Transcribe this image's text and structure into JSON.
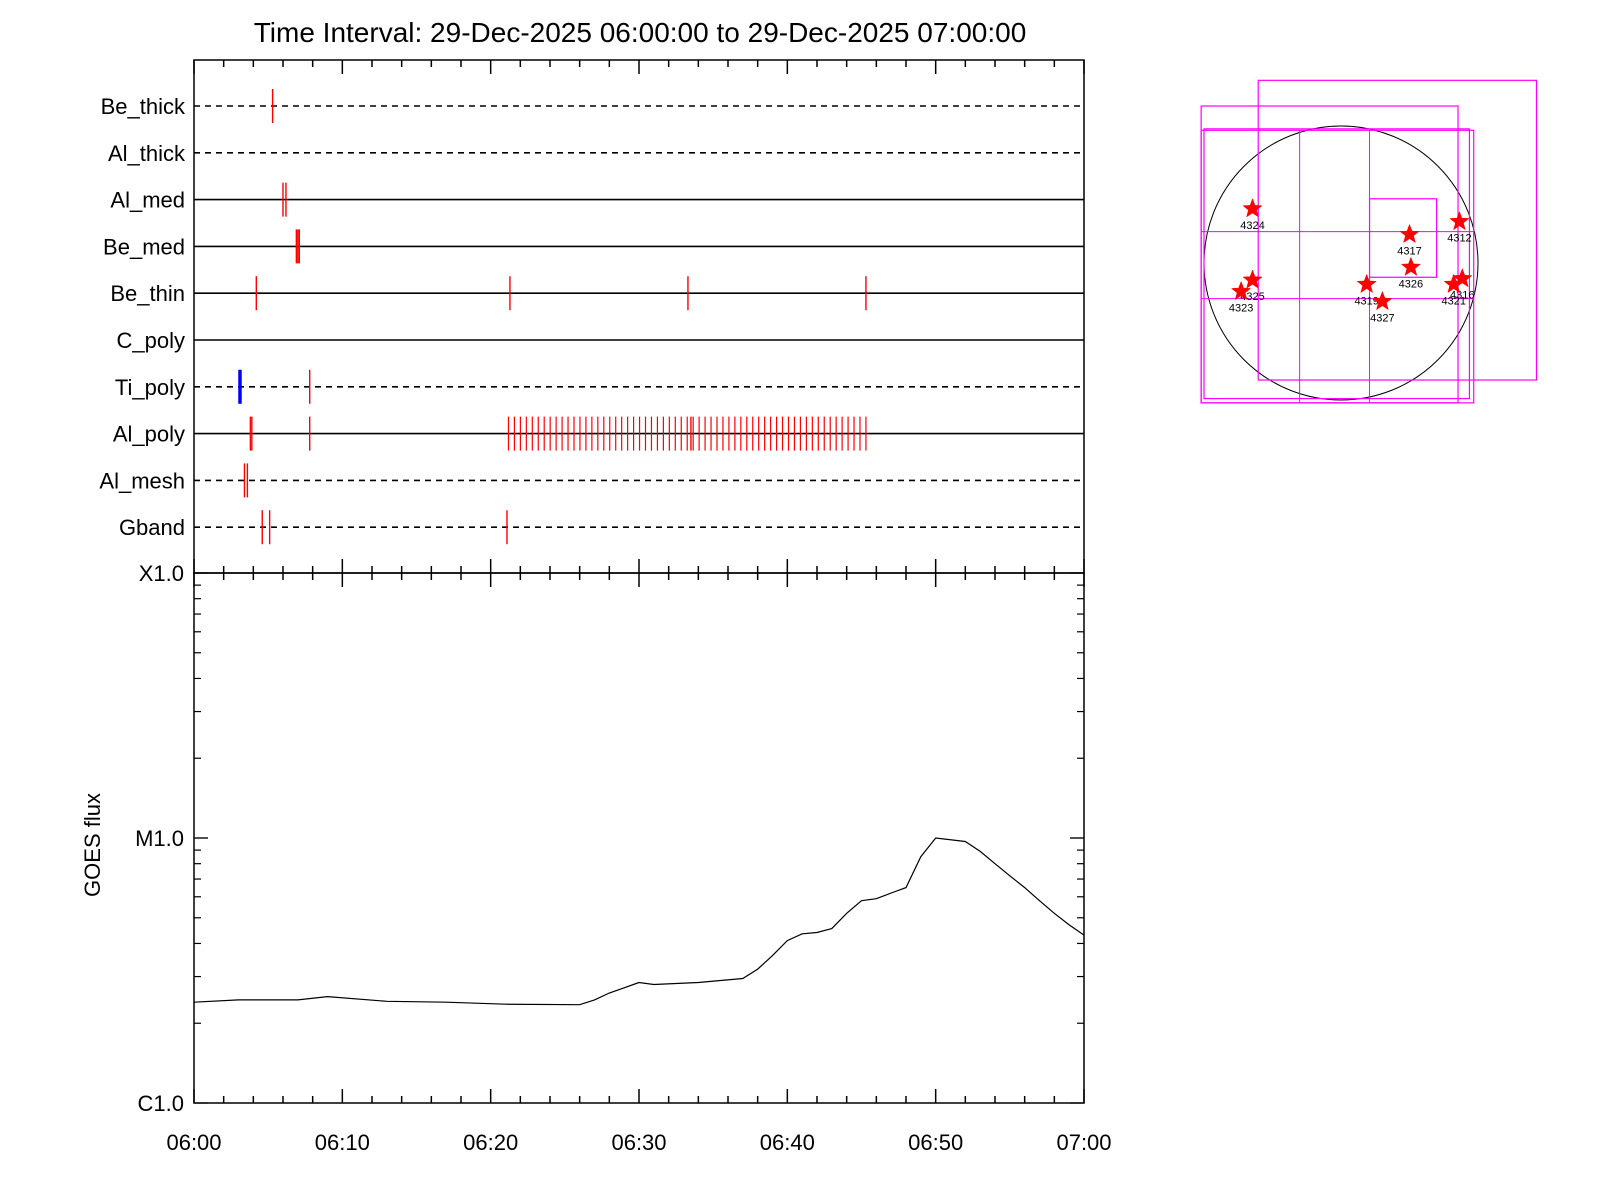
{
  "title": "Time Interval: 29-Dec-2025 06:00:00 to 29-Dec-2025 07:00:00",
  "colors": {
    "exposure": "#ff0000",
    "highlight": "#0000ff",
    "fov": "#ff00ff",
    "curve": "#000000"
  },
  "chart_data": [
    {
      "type": "timeline",
      "time_range": [
        "06:00",
        "07:00"
      ],
      "filters": [
        {
          "name": "Be_thick",
          "line": "dashed",
          "marks": [
            5.3
          ]
        },
        {
          "name": "Al_thick",
          "line": "dashed",
          "marks": []
        },
        {
          "name": "Al_med",
          "line": "solid",
          "marks": [
            6.0,
            6.2
          ]
        },
        {
          "name": "Be_med",
          "line": "solid",
          "marks": [
            6.9,
            7.0,
            7.1
          ]
        },
        {
          "name": "Be_thin",
          "line": "solid",
          "marks": [
            4.2,
            21.3,
            33.3,
            45.3
          ]
        },
        {
          "name": "C_poly",
          "line": "solid",
          "marks": []
        },
        {
          "name": "Ti_poly",
          "line": "dashed",
          "marks": [
            7.8
          ],
          "highlight": [
            3.1
          ]
        },
        {
          "name": "Al_poly",
          "line": "solid",
          "marks": [
            3.8,
            3.9,
            7.8,
            33.5
          ],
          "dense_range": [
            21.2,
            45.3
          ],
          "dense_step": 0.4
        },
        {
          "name": "Al_mesh",
          "line": "dashed",
          "marks": [
            3.4,
            3.6
          ]
        },
        {
          "name": "Gband",
          "line": "dashed",
          "marks": [
            4.6,
            5.1,
            21.1
          ]
        }
      ]
    },
    {
      "type": "line",
      "ylabel": "GOES flux",
      "yscale": "log",
      "ylim": [
        1e-06,
        0.0001
      ],
      "yticks": [
        {
          "value": 1e-06,
          "label": "C1.0"
        },
        {
          "value": 1e-05,
          "label": "M1.0"
        },
        {
          "value": 0.0001,
          "label": "X1.0"
        }
      ],
      "xlim": [
        "06:00",
        "07:00"
      ],
      "xticks": [
        "06:00",
        "06:10",
        "06:20",
        "06:30",
        "06:40",
        "06:50",
        "07:00"
      ],
      "x": [
        0,
        3,
        7,
        9,
        13,
        17,
        21,
        26,
        27,
        28,
        29,
        30,
        31,
        34,
        37,
        38,
        39,
        40,
        41,
        42,
        43,
        44,
        45,
        46,
        47,
        48,
        49,
        50,
        52,
        53,
        54,
        55,
        56,
        57,
        58,
        59,
        60
      ],
      "y": [
        2.4e-06,
        2.45e-06,
        2.45e-06,
        2.52e-06,
        2.42e-06,
        2.4e-06,
        2.36e-06,
        2.35e-06,
        2.45e-06,
        2.6e-06,
        2.72e-06,
        2.85e-06,
        2.8e-06,
        2.85e-06,
        2.95e-06,
        3.2e-06,
        3.6e-06,
        4.1e-06,
        4.35e-06,
        4.4e-06,
        4.55e-06,
        5.2e-06,
        5.8e-06,
        5.9e-06,
        6.2e-06,
        6.5e-06,
        8.5e-06,
        1e-05,
        9.7e-06,
        8.9e-06,
        8e-06,
        7.2e-06,
        6.5e-06,
        5.8e-06,
        5.2e-06,
        4.7e-06,
        4.3e-06
      ]
    },
    {
      "type": "scatter",
      "description": "solar disk with active regions",
      "points": [
        {
          "label": "4324",
          "x": -620,
          "y": 380
        },
        {
          "label": "4317",
          "x": 480,
          "y": 200
        },
        {
          "label": "4312",
          "x": 830,
          "y": 290
        },
        {
          "label": "4326",
          "x": 490,
          "y": -30
        },
        {
          "label": "4325",
          "x": -620,
          "y": -120
        },
        {
          "label": "4323",
          "x": -700,
          "y": -200
        },
        {
          "label": "4319",
          "x": 180,
          "y": -150
        },
        {
          "label": "4327",
          "x": 290,
          "y": -270
        },
        {
          "label": "4316",
          "x": 850,
          "y": -110
        },
        {
          "label": "4321",
          "x": 790,
          "y": -150
        }
      ],
      "fov_boxes": [
        [
          -980,
          820,
          -980,
          1100
        ],
        [
          -580,
          1370,
          -820,
          1280
        ],
        [
          -980,
          930,
          -980,
          930
        ],
        [
          -960,
          900,
          -950,
          940
        ],
        [
          200,
          670,
          -100,
          450
        ]
      ],
      "fov_lines": [
        {
          "orient": "h",
          "at": 220,
          "from": -980,
          "to": 930
        },
        {
          "orient": "h",
          "at": -250,
          "from": -980,
          "to": 930
        },
        {
          "orient": "v",
          "at": -290,
          "from": -980,
          "to": 930
        },
        {
          "orient": "v",
          "at": 200,
          "from": -980,
          "to": 930
        }
      ]
    }
  ]
}
